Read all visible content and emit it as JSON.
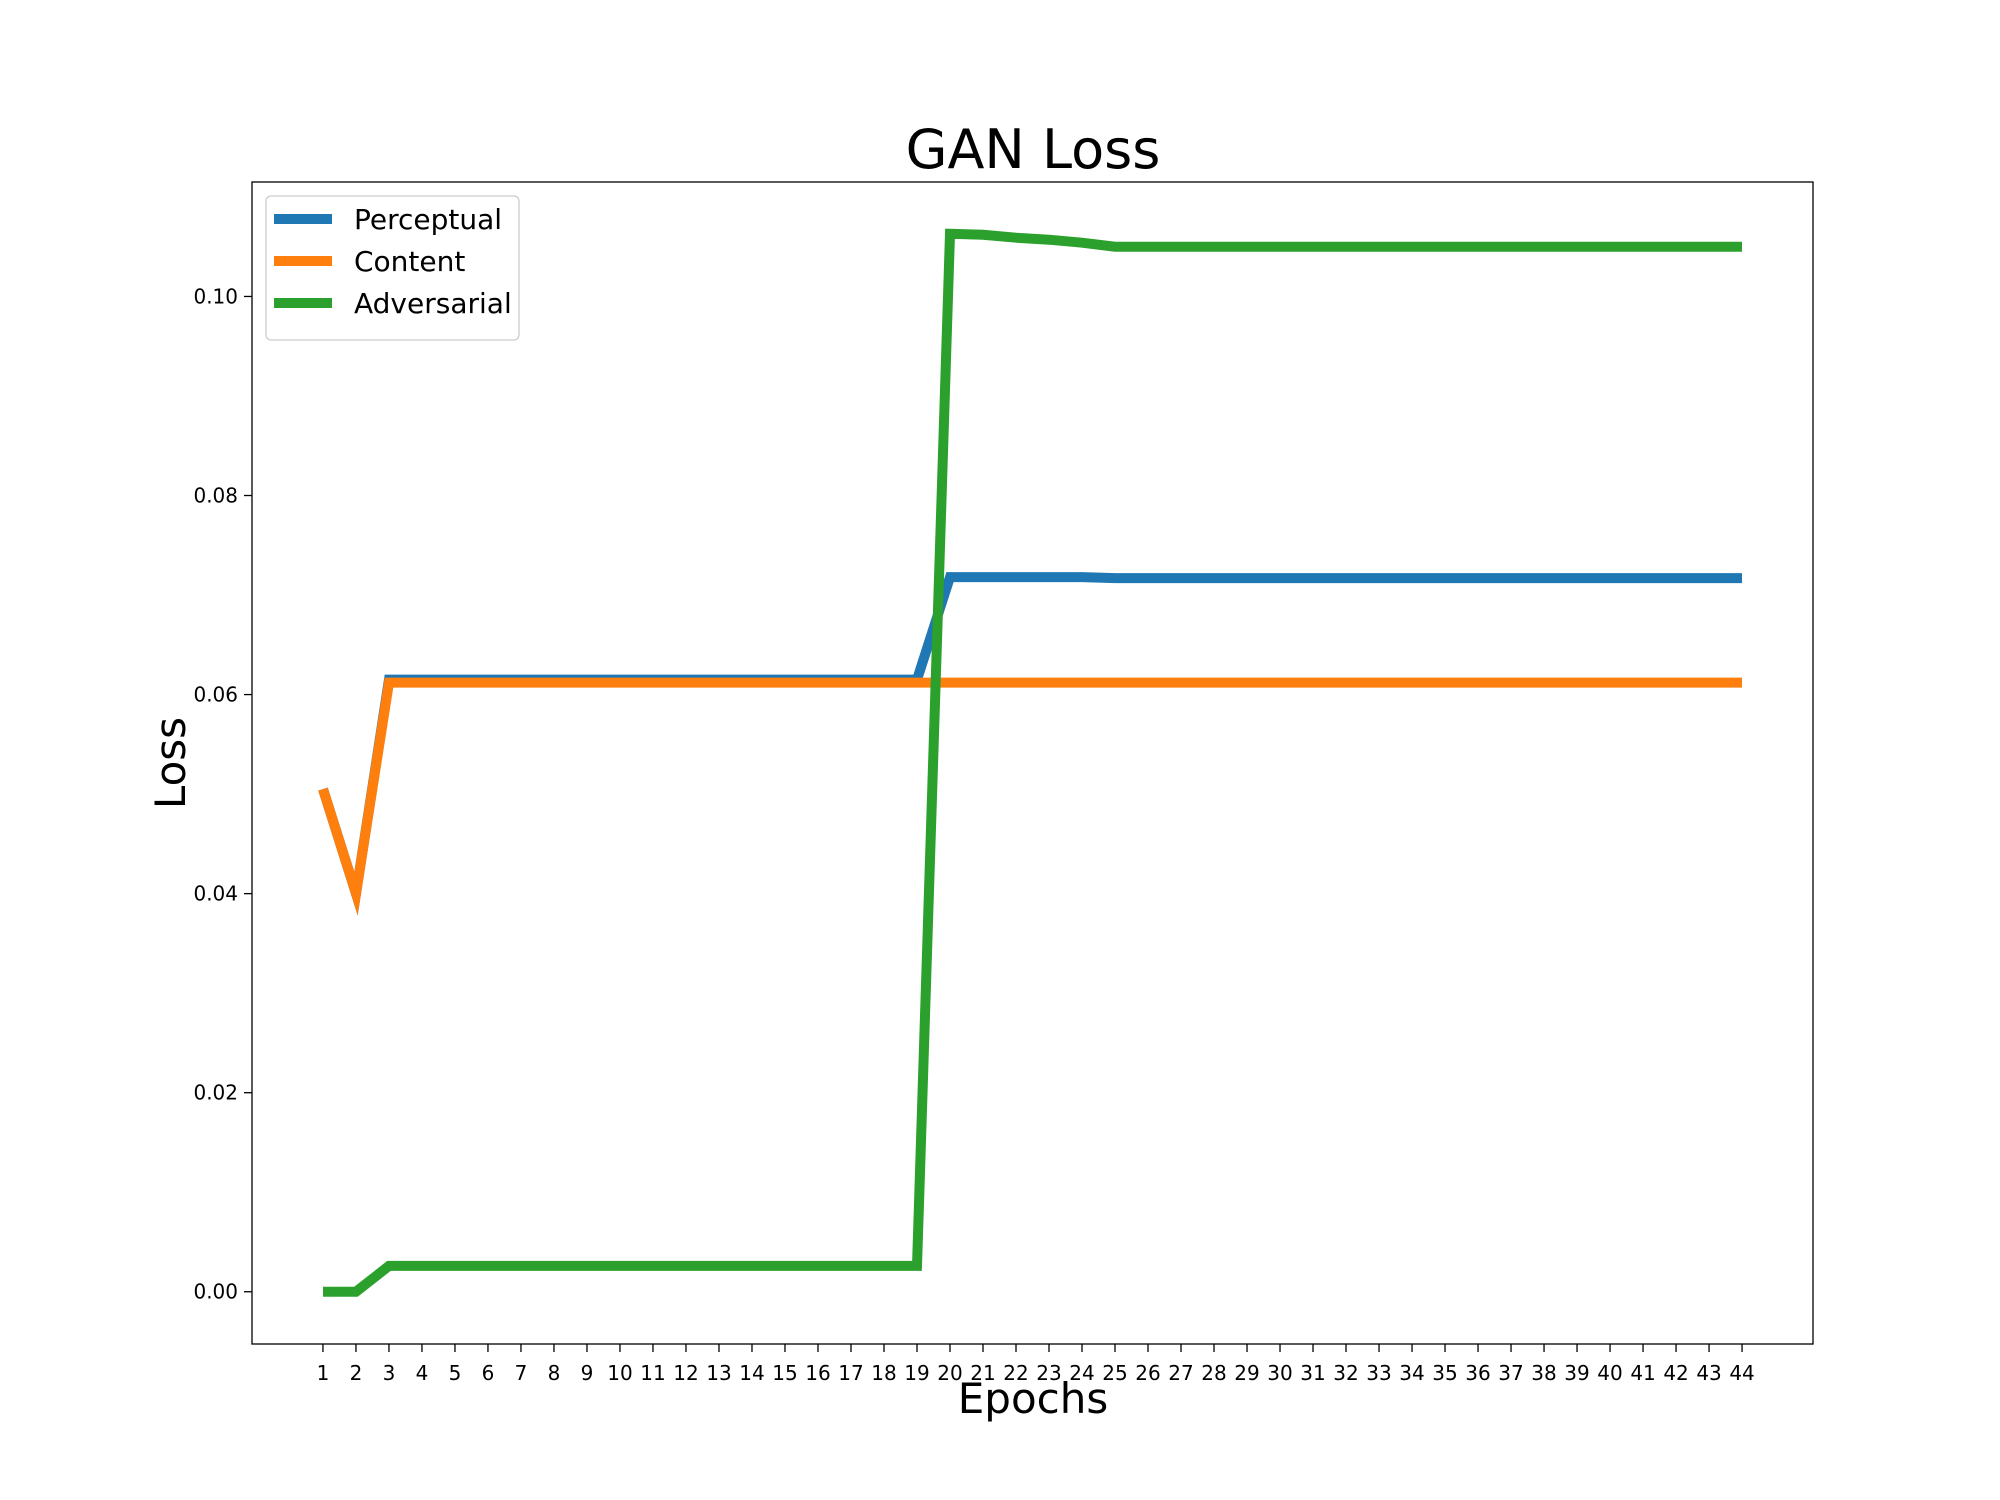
{
  "chart_data": {
    "type": "line",
    "title": "GAN Loss",
    "xlabel": "Epochs",
    "ylabel": "Loss",
    "x": [
      1,
      2,
      3,
      4,
      5,
      6,
      7,
      8,
      9,
      10,
      11,
      12,
      13,
      14,
      15,
      16,
      17,
      18,
      19,
      20,
      21,
      22,
      23,
      24,
      25,
      26,
      27,
      28,
      29,
      30,
      31,
      32,
      33,
      34,
      35,
      36,
      37,
      38,
      39,
      40,
      41,
      42,
      43,
      44
    ],
    "xlim": [
      -1.15,
      46.15
    ],
    "ylim": [
      -0.00525,
      0.1115
    ],
    "yticks": [
      0.0,
      0.02,
      0.04,
      0.06,
      0.08,
      0.1
    ],
    "ytick_labels": [
      "0.00",
      "0.02",
      "0.04",
      "0.06",
      "0.08",
      "0.10"
    ],
    "grid": false,
    "legend_position": "top-left",
    "series": [
      {
        "name": "Perceptual",
        "color": "#1f77b4",
        "values": [
          0.0505,
          0.04,
          0.0615,
          0.0615,
          0.0615,
          0.0615,
          0.0615,
          0.0615,
          0.0615,
          0.0615,
          0.0615,
          0.0615,
          0.0615,
          0.0615,
          0.0615,
          0.0615,
          0.0615,
          0.0615,
          0.0615,
          0.0718,
          0.0718,
          0.0718,
          0.0718,
          0.0718,
          0.0717,
          0.0717,
          0.0717,
          0.0717,
          0.0717,
          0.0717,
          0.0717,
          0.0717,
          0.0717,
          0.0717,
          0.0717,
          0.0717,
          0.0717,
          0.0717,
          0.0717,
          0.0717,
          0.0717,
          0.0717,
          0.0717,
          0.0717
        ]
      },
      {
        "name": "Content",
        "color": "#ff7f0e",
        "values": [
          0.0505,
          0.04,
          0.0612,
          0.0612,
          0.0612,
          0.0612,
          0.0612,
          0.0612,
          0.0612,
          0.0612,
          0.0612,
          0.0612,
          0.0612,
          0.0612,
          0.0612,
          0.0612,
          0.0612,
          0.0612,
          0.0612,
          0.0612,
          0.0612,
          0.0612,
          0.0612,
          0.0612,
          0.0612,
          0.0612,
          0.0612,
          0.0612,
          0.0612,
          0.0612,
          0.0612,
          0.0612,
          0.0612,
          0.0612,
          0.0612,
          0.0612,
          0.0612,
          0.0612,
          0.0612,
          0.0612,
          0.0612,
          0.0612,
          0.0612,
          0.0612
        ]
      },
      {
        "name": "Adversarial",
        "color": "#2ca02c",
        "values": [
          0.0,
          0.0,
          0.0026,
          0.0026,
          0.0026,
          0.0026,
          0.0026,
          0.0026,
          0.0026,
          0.0026,
          0.0026,
          0.0026,
          0.0026,
          0.0026,
          0.0026,
          0.0026,
          0.0026,
          0.0026,
          0.0026,
          0.1063,
          0.1062,
          0.1059,
          0.1057,
          0.1054,
          0.105,
          0.105,
          0.105,
          0.105,
          0.105,
          0.105,
          0.105,
          0.105,
          0.105,
          0.105,
          0.105,
          0.105,
          0.105,
          0.105,
          0.105,
          0.105,
          0.105,
          0.105,
          0.105,
          0.105
        ]
      }
    ]
  }
}
